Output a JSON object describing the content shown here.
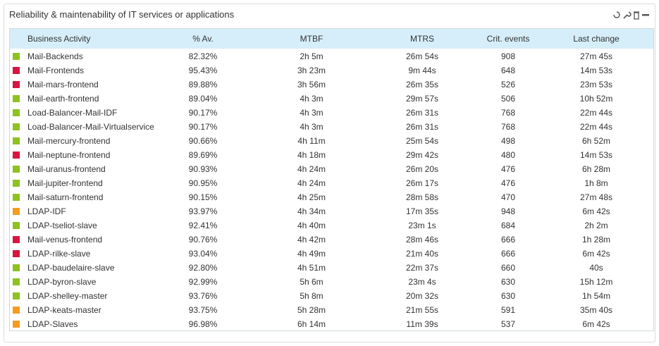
{
  "widget": {
    "title": "Reliability & maintenability of IT services or applications"
  },
  "table": {
    "columns": [
      "Business Activity",
      "% Av.",
      "MTBF",
      "MTRS",
      "Crit. events",
      "Last change"
    ],
    "rows": [
      {
        "color": "#8dc21f",
        "cells": [
          "Mail-Backends",
          "82.32%",
          "2h 5m",
          "26m 54s",
          908,
          "27m 45s"
        ]
      },
      {
        "color": "#d8143f",
        "cells": [
          "Mail-Frontends",
          "95.43%",
          "3h 23m",
          "9m 44s",
          648,
          "14m 53s"
        ]
      },
      {
        "color": "#d8143f",
        "cells": [
          "Mail-mars-frontend",
          "89.88%",
          "3h 56m",
          "26m 35s",
          526,
          "23m 53s"
        ]
      },
      {
        "color": "#8dc21f",
        "cells": [
          "Mail-earth-frontend",
          "89.04%",
          "4h 3m",
          "29m 57s",
          506,
          "10h 52m"
        ]
      },
      {
        "color": "#8dc21f",
        "cells": [
          "Load-Balancer-Mail-IDF",
          "90.17%",
          "4h 3m",
          "26m 31s",
          768,
          "22m 44s"
        ]
      },
      {
        "color": "#8dc21f",
        "cells": [
          "Load-Balancer-Mail-Virtualservice",
          "90.17%",
          "4h 3m",
          "26m 31s",
          768,
          "22m 44s"
        ]
      },
      {
        "color": "#8dc21f",
        "cells": [
          "Mail-mercury-frontend",
          "90.66%",
          "4h 11m",
          "25m 54s",
          498,
          "6h 52m"
        ]
      },
      {
        "color": "#d8143f",
        "cells": [
          "Mail-neptune-frontend",
          "89.69%",
          "4h 18m",
          "29m 42s",
          480,
          "14m 53s"
        ]
      },
      {
        "color": "#8dc21f",
        "cells": [
          "Mail-uranus-frontend",
          "90.93%",
          "4h 24m",
          "26m 20s",
          476,
          "6h 28m"
        ]
      },
      {
        "color": "#8dc21f",
        "cells": [
          "Mail-jupiter-frontend",
          "90.95%",
          "4h 24m",
          "26m 17s",
          476,
          "1h 8m"
        ]
      },
      {
        "color": "#8dc21f",
        "cells": [
          "Mail-saturn-frontend",
          "90.15%",
          "4h 25m",
          "28m 58s",
          470,
          "27m 48s"
        ]
      },
      {
        "color": "#f39c1f",
        "cells": [
          "LDAP-IDF",
          "93.97%",
          "4h 34m",
          "17m 35s",
          948,
          "6m 42s"
        ]
      },
      {
        "color": "#8dc21f",
        "cells": [
          "LDAP-tseliot-slave",
          "92.41%",
          "4h 40m",
          "23m 1s",
          684,
          "2h 2m"
        ]
      },
      {
        "color": "#d8143f",
        "cells": [
          "Mail-venus-frontend",
          "90.76%",
          "4h 42m",
          "28m 46s",
          666,
          "1h 28m"
        ]
      },
      {
        "color": "#d8143f",
        "cells": [
          "LDAP-rilke-slave",
          "93.04%",
          "4h 49m",
          "21m 40s",
          666,
          "6m 42s"
        ]
      },
      {
        "color": "#8dc21f",
        "cells": [
          "LDAP-baudelaire-slave",
          "92.80%",
          "4h 51m",
          "22m 37s",
          660,
          "40s"
        ]
      },
      {
        "color": "#8dc21f",
        "cells": [
          "LDAP-byron-slave",
          "92.99%",
          "5h 6m",
          "23m 4s",
          630,
          "15h 12m"
        ]
      },
      {
        "color": "#8dc21f",
        "cells": [
          "LDAP-shelley-master",
          "93.76%",
          "5h 8m",
          "20m 32s",
          630,
          "1h 54m"
        ]
      },
      {
        "color": "#f39c1f",
        "cells": [
          "LDAP-keats-master",
          "93.75%",
          "5h 28m",
          "21m 55s",
          591,
          "35m 40s"
        ]
      },
      {
        "color": "#f39c1f",
        "cells": [
          "LDAP-Slaves",
          "96.98%",
          "6h 14m",
          "11m 39s",
          537,
          "6m 42s"
        ]
      }
    ]
  }
}
